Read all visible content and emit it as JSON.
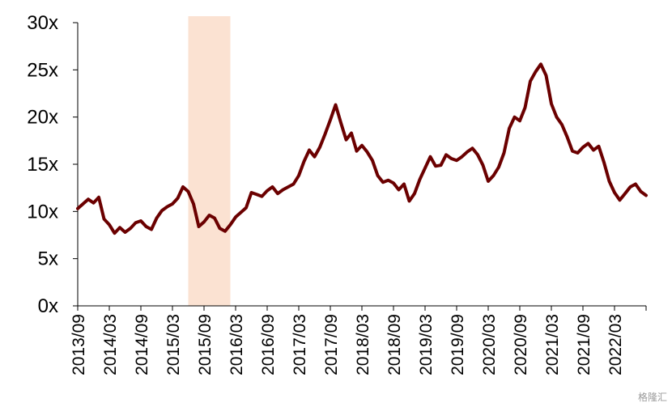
{
  "watermark": "格隆汇",
  "chart_data": {
    "type": "line",
    "title": "",
    "xlabel": "",
    "ylabel": "",
    "ylim": [
      0,
      30
    ],
    "y_ticks": [
      "0x",
      "5x",
      "10x",
      "15x",
      "20x",
      "25x",
      "30x"
    ],
    "y_tick_values": [
      0,
      5,
      10,
      15,
      20,
      25,
      30
    ],
    "x_tick_labels": [
      "2013/09",
      "2014/03",
      "2014/09",
      "2015/03",
      "2015/09",
      "2016/03",
      "2016/09",
      "2017/03",
      "2017/09",
      "2018/03",
      "2018/09",
      "2019/03",
      "2019/09",
      "2020/03",
      "2020/09",
      "2021/03",
      "2021/09",
      "2022/03"
    ],
    "x_range": [
      "2013-09",
      "2022-09"
    ],
    "line_color": "#6b0000",
    "shade_color": "#fbe2d2",
    "shaded_period": [
      "2015-06",
      "2016-02"
    ],
    "series": [
      {
        "points": [
          [
            "2013-09",
            10.3
          ],
          [
            "2013-10",
            10.8
          ],
          [
            "2013-11",
            11.3
          ],
          [
            "2013-12",
            10.9
          ],
          [
            "2014-01",
            11.5
          ],
          [
            "2014-02",
            9.2
          ],
          [
            "2014-03",
            8.6
          ],
          [
            "2014-04",
            7.7
          ],
          [
            "2014-05",
            8.3
          ],
          [
            "2014-06",
            7.8
          ],
          [
            "2014-07",
            8.2
          ],
          [
            "2014-08",
            8.8
          ],
          [
            "2014-09",
            9.0
          ],
          [
            "2014-10",
            8.4
          ],
          [
            "2014-11",
            8.1
          ],
          [
            "2014-12",
            9.3
          ],
          [
            "2015-01",
            10.1
          ],
          [
            "2015-02",
            10.5
          ],
          [
            "2015-03",
            10.8
          ],
          [
            "2015-04",
            11.4
          ],
          [
            "2015-05",
            12.6
          ],
          [
            "2015-06",
            12.1
          ],
          [
            "2015-07",
            10.8
          ],
          [
            "2015-08",
            8.4
          ],
          [
            "2015-09",
            8.9
          ],
          [
            "2015-10",
            9.6
          ],
          [
            "2015-11",
            9.3
          ],
          [
            "2015-12",
            8.2
          ],
          [
            "2016-01",
            7.9
          ],
          [
            "2016-02",
            8.6
          ],
          [
            "2016-03",
            9.4
          ],
          [
            "2016-04",
            9.9
          ],
          [
            "2016-05",
            10.4
          ],
          [
            "2016-06",
            12.0
          ],
          [
            "2016-07",
            11.8
          ],
          [
            "2016-08",
            11.6
          ],
          [
            "2016-09",
            12.2
          ],
          [
            "2016-10",
            12.6
          ],
          [
            "2016-11",
            11.9
          ],
          [
            "2016-12",
            12.3
          ],
          [
            "2017-01",
            12.6
          ],
          [
            "2017-02",
            12.9
          ],
          [
            "2017-03",
            13.8
          ],
          [
            "2017-04",
            15.3
          ],
          [
            "2017-05",
            16.5
          ],
          [
            "2017-06",
            15.8
          ],
          [
            "2017-07",
            16.8
          ],
          [
            "2017-08",
            18.2
          ],
          [
            "2017-09",
            19.7
          ],
          [
            "2017-10",
            21.3
          ],
          [
            "2017-11",
            19.4
          ],
          [
            "2017-12",
            17.6
          ],
          [
            "2018-01",
            18.3
          ],
          [
            "2018-02",
            16.4
          ],
          [
            "2018-03",
            17.0
          ],
          [
            "2018-04",
            16.3
          ],
          [
            "2018-05",
            15.4
          ],
          [
            "2018-06",
            13.8
          ],
          [
            "2018-07",
            13.1
          ],
          [
            "2018-08",
            13.3
          ],
          [
            "2018-09",
            13.0
          ],
          [
            "2018-10",
            12.3
          ],
          [
            "2018-11",
            12.9
          ],
          [
            "2018-12",
            11.1
          ],
          [
            "2019-01",
            11.9
          ],
          [
            "2019-02",
            13.4
          ],
          [
            "2019-03",
            14.6
          ],
          [
            "2019-04",
            15.8
          ],
          [
            "2019-05",
            14.8
          ],
          [
            "2019-06",
            14.9
          ],
          [
            "2019-07",
            16.0
          ],
          [
            "2019-08",
            15.6
          ],
          [
            "2019-09",
            15.4
          ],
          [
            "2019-10",
            15.8
          ],
          [
            "2019-11",
            16.3
          ],
          [
            "2019-12",
            16.7
          ],
          [
            "2020-01",
            16.0
          ],
          [
            "2020-02",
            14.9
          ],
          [
            "2020-03",
            13.2
          ],
          [
            "2020-04",
            13.8
          ],
          [
            "2020-05",
            14.7
          ],
          [
            "2020-06",
            16.2
          ],
          [
            "2020-07",
            18.8
          ],
          [
            "2020-08",
            20.0
          ],
          [
            "2020-09",
            19.6
          ],
          [
            "2020-10",
            21.0
          ],
          [
            "2020-11",
            23.8
          ],
          [
            "2020-12",
            24.8
          ],
          [
            "2021-01",
            25.6
          ],
          [
            "2021-02",
            24.4
          ],
          [
            "2021-03",
            21.4
          ],
          [
            "2021-04",
            20.0
          ],
          [
            "2021-05",
            19.2
          ],
          [
            "2021-06",
            17.9
          ],
          [
            "2021-07",
            16.4
          ],
          [
            "2021-08",
            16.2
          ],
          [
            "2021-09",
            16.8
          ],
          [
            "2021-10",
            17.2
          ],
          [
            "2021-11",
            16.5
          ],
          [
            "2021-12",
            16.9
          ],
          [
            "2022-01",
            15.2
          ],
          [
            "2022-02",
            13.2
          ],
          [
            "2022-03",
            12.0
          ],
          [
            "2022-04",
            11.2
          ],
          [
            "2022-05",
            11.9
          ],
          [
            "2022-06",
            12.6
          ],
          [
            "2022-07",
            12.9
          ],
          [
            "2022-08",
            12.1
          ],
          [
            "2022-09",
            11.7
          ]
        ]
      }
    ]
  }
}
